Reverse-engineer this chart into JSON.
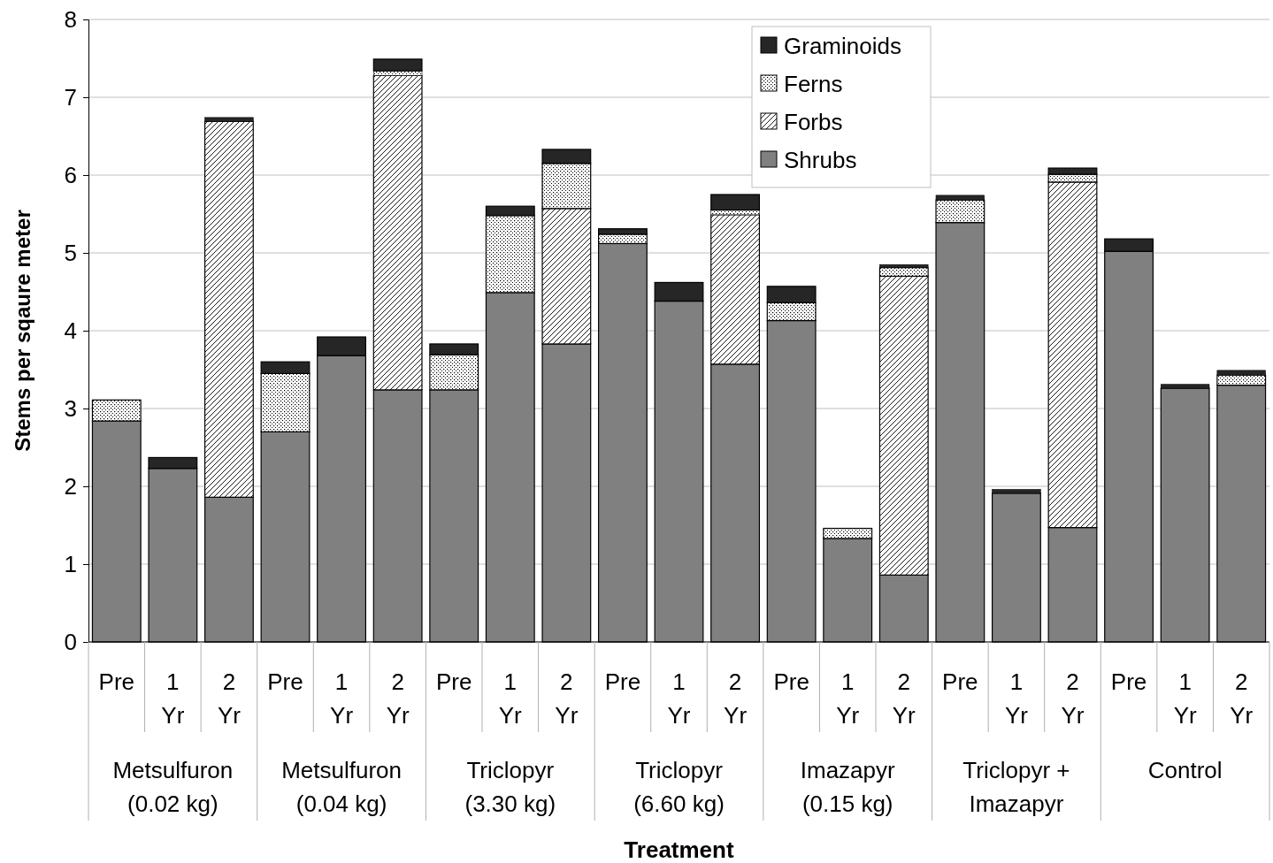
{
  "chart_data": {
    "type": "bar",
    "stacked": true,
    "ylabel": "Stems per sqaure meter",
    "xlabel": "Treatment",
    "categories": [
      "Pre",
      "1 Yr",
      "2 Yr",
      "Pre",
      "1 Yr",
      "2 Yr",
      "Pre",
      "1 Yr",
      "2 Yr",
      "Pre",
      "1 Yr",
      "2 Yr",
      "Pre",
      "1 Yr",
      "2 Yr",
      "Pre",
      "1 Yr",
      "2 Yr",
      "Pre",
      "1 Yr",
      "2 Yr"
    ],
    "annotations": [
      "Metsulfuron\n(0.02 kg)",
      "Metsulfuron\n(0.04 kg)",
      "Triclopyr\n(3.30 kg)",
      "Triclopyr\n(6.60 kg)",
      "Imazapyr\n(0.15 kg)",
      "Triclopyr +\nImazapyr",
      "Control"
    ],
    "ylim": [
      0,
      8
    ],
    "yticks": [
      0,
      1,
      2,
      3,
      4,
      5,
      6,
      7,
      8
    ],
    "grid": "y",
    "legend": "top right",
    "series": [
      {
        "name": "Shrubs",
        "color": "#808080",
        "values": [
          2.84,
          2.23,
          1.86,
          2.7,
          3.68,
          3.24,
          3.24,
          4.49,
          3.83,
          5.12,
          4.38,
          3.57,
          4.13,
          1.33,
          0.86,
          5.39,
          1.91,
          1.47,
          5.02,
          3.26,
          3.3
        ]
      },
      {
        "name": "Forbs",
        "color": "#000000",
        "values": [
          0,
          0,
          4.83,
          0,
          0,
          4.04,
          0,
          0,
          1.74,
          0,
          0,
          1.92,
          0,
          0,
          3.84,
          0,
          0,
          4.44,
          0,
          0,
          0
        ]
      },
      {
        "name": "Ferns",
        "color": "#000000",
        "values": [
          0.27,
          0,
          0,
          0.75,
          0,
          0.06,
          0.45,
          0.99,
          0.58,
          0.12,
          0,
          0.06,
          0.23,
          0.13,
          0.11,
          0.29,
          0,
          0.1,
          0,
          0,
          0.13
        ]
      },
      {
        "name": "Graminoids",
        "color": "#262626",
        "values": [
          0,
          0.14,
          0.05,
          0.15,
          0.24,
          0.15,
          0.14,
          0.12,
          0.18,
          0.07,
          0.24,
          0.2,
          0.21,
          0,
          0.04,
          0.06,
          0.05,
          0.08,
          0.16,
          0.05,
          0.06
        ]
      }
    ]
  }
}
